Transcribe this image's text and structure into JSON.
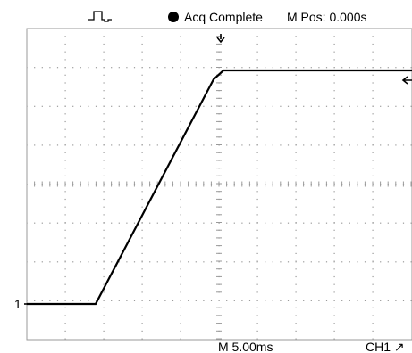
{
  "status": {
    "run_state": "Acq Complete",
    "menu_position": "M Pos: 0.000s"
  },
  "readout": {
    "timebase": "M 5.00ms",
    "trigger": "CH1 ↗"
  },
  "channel": {
    "marker": "1"
  },
  "icons": {
    "status_dot": "filled-circle-icon",
    "trigger_position": "down-arrow-icon",
    "trigger_level": "left-arrow-icon",
    "acquire_mode": "pulse-waveform-icon"
  },
  "colors": {
    "trace": "#000000",
    "grid": "#9a9a9a",
    "background": "#ffffff"
  }
}
